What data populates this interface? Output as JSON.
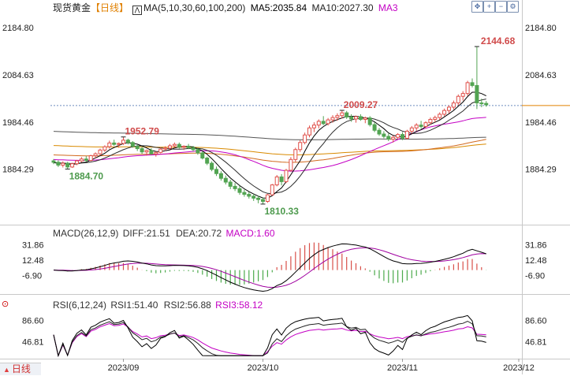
{
  "header": {
    "title": "现货黄金",
    "period": "【日线】",
    "ma_label": "MA(5,10,30,60,100,200)",
    "ma5": "MA5:2035.84",
    "ma10": "MA10:2027.30",
    "ma3": "MA3"
  },
  "toolbar_icons": [
    "move-icon",
    "zoom-in-icon",
    "zoom-out-icon",
    "settings-icon",
    "fullscreen-icon"
  ],
  "macd_panel": {
    "label": "MACD(26,12,9)",
    "diff": "DIFF:21.51",
    "dea": "DEA:20.72",
    "macd": "MACD:1.60"
  },
  "rsi_panel": {
    "label": "RSI(6,12,24)",
    "rsi1": "RSI1:51.40",
    "rsi2": "RSI2:56.88",
    "rsi3": "RSI3:58.12"
  },
  "footer": {
    "period_tag": "日线"
  },
  "colors": {
    "up": "#e0504a",
    "down": "#52a452",
    "ma5": "#000000",
    "ma10": "#2d2d2d",
    "ma30": "#c400c4",
    "ma60": "#d98a00",
    "ma100": "#555555",
    "ma200": "#d2691e",
    "diff": "#000000",
    "dea": "#a000a0",
    "last_price": "#e08000"
  },
  "chart_data": {
    "type": "candlestick",
    "price_axis": {
      "min": 1770,
      "max": 2210,
      "ticks": [
        "2184.80",
        "2084.63",
        "1984.46",
        "1884.29"
      ]
    },
    "last_price_line": 2019.5,
    "annotations": [
      {
        "label": "1952.79",
        "value": 1952.79
      },
      {
        "label": "1884.70",
        "value": 1884.7
      },
      {
        "label": "1810.33",
        "value": 1810.33
      },
      {
        "label": "2009.27",
        "value": 2009.27
      },
      {
        "label": "2144.68",
        "value": 2144.68
      }
    ],
    "x_labels": [
      "2023/09",
      "2023/10",
      "2023/11",
      "2023/12"
    ],
    "x_label_bar_index": [
      15,
      45,
      75,
      100
    ],
    "ohlc": [
      [
        1902,
        1906,
        1895,
        1899
      ],
      [
        1899,
        1903,
        1889,
        1893
      ],
      [
        1893,
        1901,
        1888,
        1897
      ],
      [
        1897,
        1900,
        1884.7,
        1889
      ],
      [
        1889,
        1898,
        1887,
        1896
      ],
      [
        1896,
        1904,
        1893,
        1902
      ],
      [
        1902,
        1910,
        1899,
        1906
      ],
      [
        1906,
        1912,
        1900,
        1903
      ],
      [
        1903,
        1915,
        1901,
        1913
      ],
      [
        1913,
        1920,
        1908,
        1917
      ],
      [
        1917,
        1928,
        1914,
        1925
      ],
      [
        1925,
        1935,
        1921,
        1932
      ],
      [
        1932,
        1945,
        1928,
        1940
      ],
      [
        1940,
        1947,
        1934,
        1937
      ],
      [
        1937,
        1941,
        1930,
        1939
      ],
      [
        1939,
        1952.79,
        1936,
        1946
      ],
      [
        1946,
        1949,
        1937,
        1941
      ],
      [
        1941,
        1944,
        1930,
        1933
      ],
      [
        1933,
        1936,
        1923,
        1928
      ],
      [
        1928,
        1932,
        1917,
        1921
      ],
      [
        1921,
        1926,
        1913,
        1924
      ],
      [
        1924,
        1929,
        1915,
        1917
      ],
      [
        1917,
        1922,
        1911,
        1920
      ],
      [
        1920,
        1930,
        1918,
        1927
      ],
      [
        1927,
        1933,
        1923,
        1929
      ],
      [
        1929,
        1938,
        1926,
        1934
      ],
      [
        1934,
        1941,
        1930,
        1937
      ],
      [
        1937,
        1941,
        1928,
        1931
      ],
      [
        1931,
        1935,
        1925,
        1933
      ],
      [
        1933,
        1938,
        1927,
        1930
      ],
      [
        1930,
        1934,
        1922,
        1926
      ],
      [
        1926,
        1930,
        1915,
        1919
      ],
      [
        1919,
        1922,
        1905,
        1908
      ],
      [
        1908,
        1911,
        1893,
        1897
      ],
      [
        1897,
        1901,
        1880,
        1884
      ],
      [
        1884,
        1890,
        1870,
        1875
      ],
      [
        1875,
        1880,
        1860,
        1865
      ],
      [
        1865,
        1871,
        1852,
        1857
      ],
      [
        1857,
        1862,
        1842,
        1848
      ],
      [
        1848,
        1855,
        1838,
        1843
      ],
      [
        1843,
        1849,
        1830,
        1835
      ],
      [
        1835,
        1841,
        1826,
        1831
      ],
      [
        1831,
        1836,
        1822,
        1827
      ],
      [
        1827,
        1832,
        1817,
        1823
      ],
      [
        1823,
        1828,
        1812,
        1820
      ],
      [
        1820,
        1824,
        1810.33,
        1816
      ],
      [
        1816,
        1832,
        1813,
        1830
      ],
      [
        1830,
        1853,
        1828,
        1851
      ],
      [
        1851,
        1872,
        1848,
        1868
      ],
      [
        1868,
        1874,
        1850,
        1858
      ],
      [
        1858,
        1885,
        1855,
        1882
      ],
      [
        1882,
        1910,
        1879,
        1905
      ],
      [
        1905,
        1930,
        1900,
        1926
      ],
      [
        1926,
        1946,
        1921,
        1941
      ],
      [
        1941,
        1962,
        1937,
        1957
      ],
      [
        1957,
        1977,
        1952,
        1972
      ],
      [
        1972,
        1984,
        1963,
        1978
      ],
      [
        1978,
        1990,
        1971,
        1986
      ],
      [
        1986,
        1997,
        1978,
        1981
      ],
      [
        1981,
        1993,
        1977,
        1989
      ],
      [
        1989,
        1999,
        1983,
        1994
      ],
      [
        1994,
        2003,
        1987,
        1998
      ],
      [
        1998,
        2009.27,
        1992,
        2004
      ],
      [
        2004,
        2008,
        1991,
        1995
      ],
      [
        1995,
        2001,
        1985,
        1991
      ],
      [
        1991,
        1998,
        1983,
        1996
      ],
      [
        1996,
        2001,
        1987,
        1990
      ],
      [
        1990,
        1996,
        1982,
        1993
      ],
      [
        1993,
        1997,
        1975,
        1979
      ],
      [
        1979,
        1984,
        1963,
        1967
      ],
      [
        1967,
        1972,
        1955,
        1959
      ],
      [
        1959,
        1965,
        1950,
        1954
      ],
      [
        1954,
        1960,
        1944,
        1948
      ],
      [
        1948,
        1956,
        1941,
        1952
      ],
      [
        1952,
        1961,
        1948,
        1958
      ],
      [
        1958,
        1963,
        1946,
        1950
      ],
      [
        1950,
        1968,
        1948,
        1965
      ],
      [
        1965,
        1976,
        1960,
        1972
      ],
      [
        1972,
        1982,
        1966,
        1978
      ],
      [
        1978,
        1987,
        1970,
        1975
      ],
      [
        1975,
        1986,
        1971,
        1983
      ],
      [
        1983,
        1994,
        1979,
        1990
      ],
      [
        1990,
        1998,
        1984,
        1994
      ],
      [
        1994,
        2005,
        1989,
        2001
      ],
      [
        2001,
        2013,
        1997,
        2009
      ],
      [
        2009,
        2020,
        2003,
        2016
      ],
      [
        2016,
        2030,
        2011,
        2025
      ],
      [
        2025,
        2043,
        2020,
        2039
      ],
      [
        2039,
        2050,
        2030,
        2045
      ],
      [
        2045,
        2072,
        2040,
        2068
      ],
      [
        2068,
        2077,
        2058,
        2062
      ],
      [
        2062,
        2144.68,
        2012,
        2025
      ],
      [
        2025,
        2034,
        2016,
        2024
      ],
      [
        2024,
        2029,
        2017,
        2021
      ]
    ],
    "macd": {
      "range": [
        -28,
        45
      ],
      "ticks": [
        "31.86",
        "12.48",
        "-6.90"
      ],
      "diff_last": 21.51,
      "dea_last": 20.72,
      "hist_last": 1.6
    },
    "rsi": {
      "range": [
        20,
        105
      ],
      "ticks": [
        "86.60",
        "46.81"
      ],
      "rsi1_last": 51.4,
      "rsi2_last": 56.88,
      "rsi3_last": 58.12
    }
  }
}
